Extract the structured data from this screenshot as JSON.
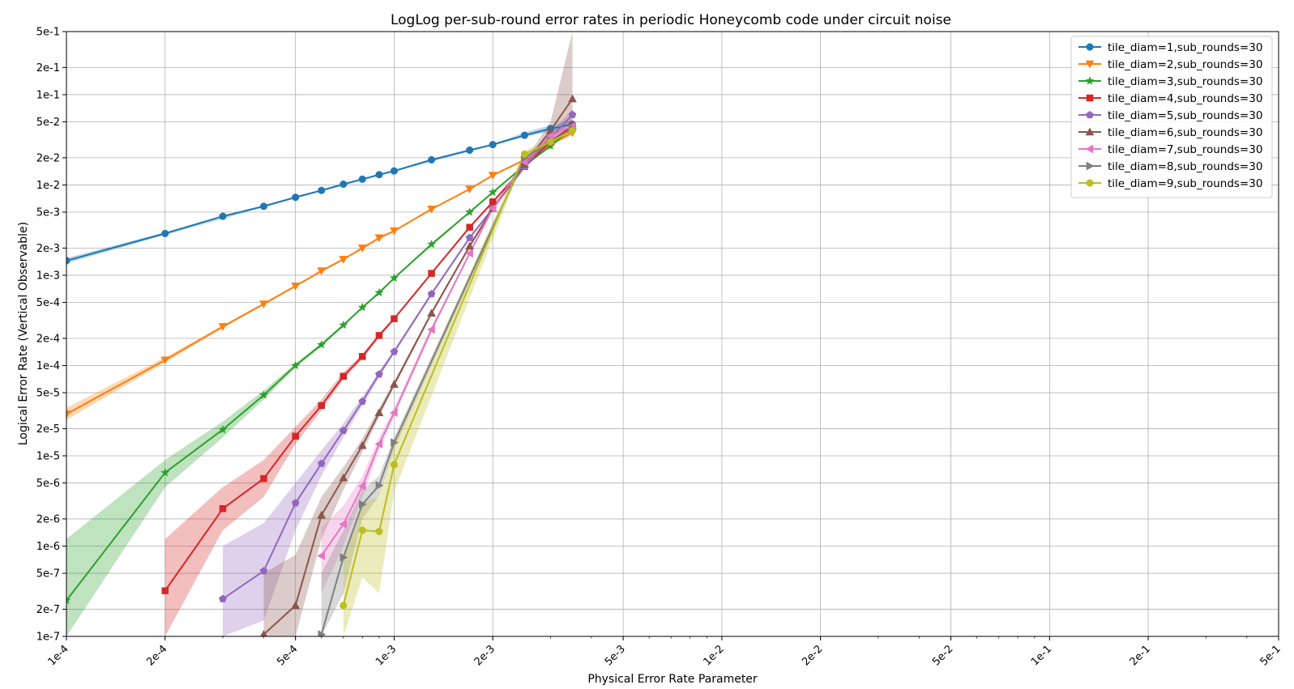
{
  "chart_data": {
    "type": "line",
    "title": "LogLog per-sub-round error rates in periodic Honeycomb code under circuit noise",
    "xlabel": "Physical Error Rate Parameter",
    "ylabel": "Logical Error Rate (Vertical Observable)",
    "xscale": "log",
    "yscale": "log",
    "xlim": [
      0.0001,
      0.5
    ],
    "ylim": [
      1e-07,
      0.5
    ],
    "x_ticks": [
      {
        "value": 0.0001,
        "label": "1e-4"
      },
      {
        "value": 0.0002,
        "label": "2e-4"
      },
      {
        "value": 0.0005,
        "label": "5e-4"
      },
      {
        "value": 0.001,
        "label": "1e-3"
      },
      {
        "value": 0.002,
        "label": "2e-3"
      },
      {
        "value": 0.005,
        "label": "5e-3"
      },
      {
        "value": 0.01,
        "label": "1e-2"
      },
      {
        "value": 0.02,
        "label": "2e-2"
      },
      {
        "value": 0.05,
        "label": "5e-2"
      },
      {
        "value": 0.1,
        "label": "1e-1"
      },
      {
        "value": 0.2,
        "label": "2e-1"
      },
      {
        "value": 0.5,
        "label": "5e-1"
      }
    ],
    "y_ticks": [
      {
        "value": 1e-07,
        "label": "1e-7"
      },
      {
        "value": 2e-07,
        "label": "2e-7"
      },
      {
        "value": 5e-07,
        "label": "5e-7"
      },
      {
        "value": 1e-06,
        "label": "1e-6"
      },
      {
        "value": 2e-06,
        "label": "2e-6"
      },
      {
        "value": 5e-06,
        "label": "5e-6"
      },
      {
        "value": 1e-05,
        "label": "1e-5"
      },
      {
        "value": 2e-05,
        "label": "2e-5"
      },
      {
        "value": 5e-05,
        "label": "5e-5"
      },
      {
        "value": 0.0001,
        "label": "1e-4"
      },
      {
        "value": 0.0002,
        "label": "2e-4"
      },
      {
        "value": 0.0005,
        "label": "5e-4"
      },
      {
        "value": 0.001,
        "label": "1e-3"
      },
      {
        "value": 0.002,
        "label": "2e-3"
      },
      {
        "value": 0.005,
        "label": "5e-3"
      },
      {
        "value": 0.01,
        "label": "1e-2"
      },
      {
        "value": 0.02,
        "label": "2e-2"
      },
      {
        "value": 0.05,
        "label": "5e-2"
      },
      {
        "value": 0.1,
        "label": "1e-1"
      },
      {
        "value": 0.2,
        "label": "2e-1"
      },
      {
        "value": 0.5,
        "label": "5e-1"
      }
    ],
    "grid": true,
    "legend_position": "top-right",
    "series": [
      {
        "name": "tile_diam=1,sub_rounds=30",
        "color": "#1f77b4",
        "marker": "circle",
        "points": [
          [
            0.0001,
            0.00145
          ],
          [
            0.0002,
            0.0029
          ],
          [
            0.0003,
            0.0045
          ],
          [
            0.0004,
            0.0058
          ],
          [
            0.0005,
            0.0073
          ],
          [
            0.0006,
            0.0087
          ],
          [
            0.0007,
            0.0102
          ],
          [
            0.0008,
            0.0116
          ],
          [
            0.0009,
            0.013
          ],
          [
            0.001,
            0.0143
          ],
          [
            0.0013,
            0.019
          ],
          [
            0.0017,
            0.0243
          ],
          [
            0.002,
            0.028
          ],
          [
            0.0025,
            0.0355
          ],
          [
            0.003,
            0.042
          ],
          [
            0.0035,
            0.047
          ]
        ],
        "band": [
          [
            0.0001,
            0.00136,
            0.00155
          ],
          [
            0.0002,
            0.0028,
            0.003
          ],
          [
            0.0005,
            0.0071,
            0.0075
          ],
          [
            0.001,
            0.014,
            0.0146
          ],
          [
            0.002,
            0.0275,
            0.0285
          ],
          [
            0.0025,
            0.034,
            0.038
          ],
          [
            0.003,
            0.039,
            0.046
          ],
          [
            0.0035,
            0.043,
            0.052
          ]
        ]
      },
      {
        "name": "tile_diam=2,sub_rounds=30",
        "color": "#ff7f0e",
        "marker": "triangle-down",
        "points": [
          [
            0.0001,
            2.9e-05
          ],
          [
            0.0002,
            0.000115
          ],
          [
            0.0003,
            0.00027
          ],
          [
            0.0004,
            0.00048
          ],
          [
            0.0005,
            0.00076
          ],
          [
            0.0006,
            0.00112
          ],
          [
            0.0007,
            0.0015
          ],
          [
            0.0008,
            0.002
          ],
          [
            0.0009,
            0.0026
          ],
          [
            0.001,
            0.0031
          ],
          [
            0.0013,
            0.0054
          ],
          [
            0.0017,
            0.009
          ],
          [
            0.002,
            0.0128
          ],
          [
            0.0025,
            0.019
          ],
          [
            0.003,
            0.028
          ],
          [
            0.0035,
            0.038
          ]
        ],
        "band": [
          [
            0.0001,
            2.5e-05,
            3.4e-05
          ],
          [
            0.0002,
            0.000108,
            0.000123
          ],
          [
            0.0003,
            0.00026,
            0.00028
          ],
          [
            0.0005,
            0.00074,
            0.00078
          ],
          [
            0.001,
            0.00305,
            0.00315
          ],
          [
            0.002,
            0.0126,
            0.013
          ],
          [
            0.0025,
            0.0185,
            0.0195
          ],
          [
            0.003,
            0.027,
            0.029
          ],
          [
            0.0035,
            0.036,
            0.04
          ]
        ]
      },
      {
        "name": "tile_diam=3,sub_rounds=30",
        "color": "#2ca02c",
        "marker": "star",
        "points": [
          [
            0.0001,
            2.5e-07
          ],
          [
            0.0002,
            6.5e-06
          ],
          [
            0.0003,
            1.95e-05
          ],
          [
            0.0004,
            4.7e-05
          ],
          [
            0.0005,
            0.0001
          ],
          [
            0.0006,
            0.00017
          ],
          [
            0.0007,
            0.00028
          ],
          [
            0.0008,
            0.00044
          ],
          [
            0.0009,
            0.00064
          ],
          [
            0.001,
            0.00093
          ],
          [
            0.0013,
            0.0022
          ],
          [
            0.0017,
            0.005
          ],
          [
            0.002,
            0.0083
          ],
          [
            0.0025,
            0.0165
          ],
          [
            0.003,
            0.027
          ],
          [
            0.0035,
            0.043
          ]
        ],
        "band": [
          [
            0.0001,
            1e-07,
            1.2e-06
          ],
          [
            0.0002,
            4.5e-06,
            9e-06
          ],
          [
            0.0003,
            1.6e-05,
            2.4e-05
          ],
          [
            0.0004,
            4.2e-05,
            5.3e-05
          ],
          [
            0.0005,
            9.5e-05,
            0.000106
          ],
          [
            0.0006,
            0.000163,
            0.000178
          ],
          [
            0.0007,
            0.00027,
            0.00029
          ],
          [
            0.0008,
            0.00043,
            0.00045
          ],
          [
            0.001,
            0.00091,
            0.00095
          ],
          [
            0.002,
            0.0082,
            0.0084
          ],
          [
            0.0025,
            0.016,
            0.017
          ],
          [
            0.003,
            0.026,
            0.028
          ],
          [
            0.0035,
            0.041,
            0.045
          ]
        ]
      },
      {
        "name": "tile_diam=4,sub_rounds=30",
        "color": "#d62728",
        "marker": "square",
        "points": [
          [
            0.0002,
            3.2e-07
          ],
          [
            0.0003,
            2.6e-06
          ],
          [
            0.0004,
            5.6e-06
          ],
          [
            0.0005,
            1.65e-05
          ],
          [
            0.0006,
            3.6e-05
          ],
          [
            0.0007,
            7.6e-05
          ],
          [
            0.0008,
            0.000126
          ],
          [
            0.0009,
            0.000215
          ],
          [
            0.001,
            0.00033
          ],
          [
            0.0013,
            0.00105
          ],
          [
            0.0017,
            0.0034
          ],
          [
            0.002,
            0.0065
          ],
          [
            0.0025,
            0.016
          ],
          [
            0.003,
            0.03
          ],
          [
            0.0035,
            0.045
          ]
        ],
        "band": [
          [
            0.0002,
            1e-07,
            1.2e-06
          ],
          [
            0.0003,
            1.5e-06,
            4.5e-06
          ],
          [
            0.0004,
            3.5e-06,
            9e-06
          ],
          [
            0.0005,
            1.35e-05,
            2.1e-05
          ],
          [
            0.0006,
            3.2e-05,
            4.2e-05
          ],
          [
            0.0007,
            7e-05,
            8.4e-05
          ],
          [
            0.0008,
            0.000118,
            0.000135
          ],
          [
            0.0009,
            0.000205,
            0.000228
          ],
          [
            0.001,
            0.00032,
            0.00034
          ],
          [
            0.0013,
            0.00102,
            0.00108
          ],
          [
            0.0017,
            0.0033,
            0.0035
          ],
          [
            0.002,
            0.0063,
            0.0067
          ],
          [
            0.0025,
            0.0155,
            0.0165
          ],
          [
            0.003,
            0.028,
            0.032
          ],
          [
            0.0035,
            0.042,
            0.048
          ]
        ]
      },
      {
        "name": "tile_diam=5,sub_rounds=30",
        "color": "#9467bd",
        "marker": "pentagon",
        "points": [
          [
            0.0003,
            2.6e-07
          ],
          [
            0.0004,
            5.3e-07
          ],
          [
            0.0005,
            3e-06
          ],
          [
            0.0006,
            8.2e-06
          ],
          [
            0.0007,
            1.9e-05
          ],
          [
            0.0008,
            4e-05
          ],
          [
            0.0009,
            8e-05
          ],
          [
            0.001,
            0.000142
          ],
          [
            0.0013,
            0.00062
          ],
          [
            0.0017,
            0.0026
          ],
          [
            0.002,
            0.0055
          ],
          [
            0.0025,
            0.016
          ],
          [
            0.003,
            0.033
          ],
          [
            0.0035,
            0.06
          ]
        ],
        "band": [
          [
            0.0003,
            1e-07,
            1e-06
          ],
          [
            0.0004,
            1.5e-07,
            1.8e-06
          ],
          [
            0.0005,
            1.5e-06,
            5e-06
          ],
          [
            0.0006,
            6e-06,
            1.15e-05
          ],
          [
            0.0007,
            1.6e-05,
            2.3e-05
          ],
          [
            0.0008,
            3.6e-05,
            4.5e-05
          ],
          [
            0.0009,
            7.4e-05,
            8.7e-05
          ],
          [
            0.001,
            0.000135,
            0.00015
          ],
          [
            0.0013,
            0.0006,
            0.00065
          ],
          [
            0.0017,
            0.0025,
            0.0027
          ],
          [
            0.002,
            0.0053,
            0.0057
          ],
          [
            0.0025,
            0.015,
            0.017
          ],
          [
            0.003,
            0.03,
            0.037
          ],
          [
            0.0035,
            0.052,
            0.07
          ]
        ]
      },
      {
        "name": "tile_diam=6,sub_rounds=30",
        "color": "#8c564b",
        "marker": "triangle-up",
        "points": [
          [
            0.0004,
            1.05e-07
          ],
          [
            0.0005,
            2.2e-07
          ],
          [
            0.0006,
            2.2e-06
          ],
          [
            0.0007,
            5.7e-06
          ],
          [
            0.0008,
            1.3e-05
          ],
          [
            0.0009,
            3e-05
          ],
          [
            0.001,
            6.2e-05
          ],
          [
            0.0013,
            0.00038
          ],
          [
            0.0017,
            0.0021
          ],
          [
            0.002,
            0.0055
          ],
          [
            0.0025,
            0.017
          ],
          [
            0.003,
            0.04
          ],
          [
            0.0035,
            0.09
          ]
        ],
        "band": [
          [
            0.0004,
            1e-07,
            5e-07
          ],
          [
            0.0005,
            1e-07,
            8e-07
          ],
          [
            0.0006,
            1.2e-06,
            3.5e-06
          ],
          [
            0.0007,
            4.2e-06,
            7.5e-06
          ],
          [
            0.0008,
            1.1e-05,
            1.55e-05
          ],
          [
            0.0009,
            2.7e-05,
            3.4e-05
          ],
          [
            0.001,
            5.8e-05,
            6.7e-05
          ],
          [
            0.0013,
            0.00036,
            0.0004
          ],
          [
            0.0017,
            0.002,
            0.0022
          ],
          [
            0.002,
            0.0052,
            0.0058
          ],
          [
            0.0025,
            0.0155,
            0.0185
          ],
          [
            0.003,
            0.032,
            0.05
          ],
          [
            0.0035,
            0.05,
            0.5
          ]
        ]
      },
      {
        "name": "tile_diam=7,sub_rounds=30",
        "color": "#e377c2",
        "marker": "triangle-left",
        "points": [
          [
            0.0006,
            7.8e-07
          ],
          [
            0.0007,
            1.75e-06
          ],
          [
            0.0008,
            4.6e-06
          ],
          [
            0.0009,
            1.35e-05
          ],
          [
            0.001,
            3e-05
          ],
          [
            0.0013,
            0.00025
          ],
          [
            0.0017,
            0.00175
          ],
          [
            0.002,
            0.0055
          ],
          [
            0.0025,
            0.018
          ],
          [
            0.003,
            0.035
          ],
          [
            0.0035,
            0.045
          ]
        ],
        "band": [
          [
            0.0006,
            3e-07,
            1.6e-06
          ],
          [
            0.0007,
            1e-06,
            2.8e-06
          ],
          [
            0.0008,
            3.5e-06,
            6e-06
          ],
          [
            0.0009,
            1.15e-05,
            1.6e-05
          ],
          [
            0.001,
            2.7e-05,
            3.4e-05
          ],
          [
            0.0013,
            0.00023,
            0.00027
          ],
          [
            0.0017,
            0.0017,
            0.0018
          ],
          [
            0.002,
            0.0053,
            0.0057
          ],
          [
            0.0025,
            0.017,
            0.019
          ],
          [
            0.003,
            0.032,
            0.038
          ],
          [
            0.0035,
            0.041,
            0.05
          ]
        ]
      },
      {
        "name": "tile_diam=8,sub_rounds=30",
        "color": "#7f7f7f",
        "marker": "triangle-right",
        "points": [
          [
            0.0006,
            1.05e-07
          ],
          [
            0.0007,
            7.5e-07
          ],
          [
            0.0008,
            2.9e-06
          ],
          [
            0.0009,
            4.7e-06
          ],
          [
            0.001,
            1.4e-05
          ],
          [
            0.0025,
            0.02
          ],
          [
            0.003,
            0.03
          ],
          [
            0.0035,
            0.042
          ]
        ],
        "band": [
          [
            0.0006,
            1e-07,
            5e-07
          ],
          [
            0.0007,
            3e-07,
            1.5e-06
          ],
          [
            0.0008,
            2e-06,
            4.2e-06
          ],
          [
            0.0009,
            3.6e-06,
            6e-06
          ],
          [
            0.001,
            1.2e-05,
            1.6e-05
          ],
          [
            0.0025,
            0.019,
            0.021
          ],
          [
            0.003,
            0.028,
            0.032
          ],
          [
            0.0035,
            0.04,
            0.044
          ]
        ]
      },
      {
        "name": "tile_diam=9,sub_rounds=30",
        "color": "#bcbd22",
        "marker": "circle",
        "points": [
          [
            0.0007,
            2.2e-07
          ],
          [
            0.0008,
            1.5e-06
          ],
          [
            0.0009,
            1.45e-06
          ],
          [
            0.001,
            8e-06
          ],
          [
            0.0025,
            0.022
          ],
          [
            0.003,
            0.03
          ],
          [
            0.0035,
            0.04
          ]
        ],
        "band": [
          [
            0.0007,
            1e-07,
            8e-07
          ],
          [
            0.0008,
            4.5e-07,
            3e-06
          ],
          [
            0.0009,
            3e-07,
            3.5e-06
          ],
          [
            0.001,
            4e-06,
            1.4e-05
          ],
          [
            0.0025,
            0.02,
            0.024
          ],
          [
            0.003,
            0.028,
            0.032
          ],
          [
            0.0035,
            0.038,
            0.043
          ]
        ]
      }
    ]
  }
}
